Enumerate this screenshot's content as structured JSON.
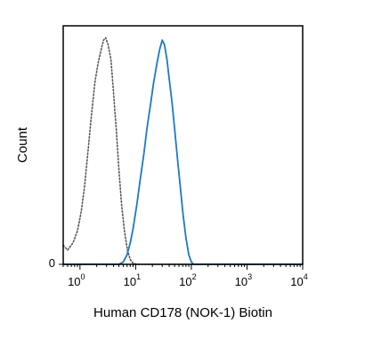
{
  "chart_data": {
    "type": "line",
    "title": "",
    "xlabel": "Human CD178 (NOK-1) Biotin",
    "ylabel": "Count",
    "x_scale": "log",
    "xlim": [
      0.5,
      10000
    ],
    "ylim": [
      0,
      100
    ],
    "x_ticks": [
      {
        "base": "10",
        "exp": "0",
        "value": 1
      },
      {
        "base": "10",
        "exp": "1",
        "value": 10
      },
      {
        "base": "10",
        "exp": "2",
        "value": 100
      },
      {
        "base": "10",
        "exp": "3",
        "value": 1000
      },
      {
        "base": "10",
        "exp": "4",
        "value": 10000
      }
    ],
    "y_ticks": [
      {
        "label": "0",
        "value": 0
      }
    ],
    "grid": false,
    "legend": "none",
    "series": [
      {
        "color": "#555555",
        "style": "dotted",
        "points": [
          [
            0.5,
            8
          ],
          [
            0.6,
            6
          ],
          [
            0.75,
            9
          ],
          [
            0.9,
            14
          ],
          [
            1.05,
            22
          ],
          [
            1.2,
            32
          ],
          [
            1.4,
            48
          ],
          [
            1.6,
            62
          ],
          [
            1.85,
            76
          ],
          [
            2.1,
            84
          ],
          [
            2.4,
            90
          ],
          [
            2.65,
            94
          ],
          [
            2.9,
            95
          ],
          [
            3.2,
            92
          ],
          [
            3.6,
            86
          ],
          [
            4.0,
            72
          ],
          [
            4.5,
            56
          ],
          [
            5.0,
            40
          ],
          [
            5.6,
            25
          ],
          [
            6.3,
            14
          ],
          [
            7.1,
            6
          ],
          [
            8.0,
            2
          ],
          [
            9.0,
            0.5
          ],
          [
            10.5,
            0
          ],
          [
            10000,
            0
          ]
        ]
      },
      {
        "color": "#1f77c8",
        "style": "solid",
        "points": [
          [
            0.5,
            0
          ],
          [
            5.0,
            0
          ],
          [
            6.0,
            1
          ],
          [
            7.0,
            4
          ],
          [
            8.0,
            9
          ],
          [
            9.0,
            15
          ],
          [
            10.5,
            25
          ],
          [
            12.0,
            35
          ],
          [
            14.0,
            46
          ],
          [
            16.0,
            57
          ],
          [
            18.5,
            67
          ],
          [
            21.0,
            76
          ],
          [
            24.0,
            84
          ],
          [
            27.0,
            90
          ],
          [
            30.0,
            94
          ],
          [
            33.0,
            92
          ],
          [
            36.5,
            86
          ],
          [
            40.0,
            78
          ],
          [
            45.0,
            68
          ],
          [
            50.0,
            57
          ],
          [
            56.0,
            45
          ],
          [
            63.0,
            33
          ],
          [
            71.0,
            21
          ],
          [
            80.0,
            11
          ],
          [
            90.0,
            4
          ],
          [
            100.0,
            1
          ],
          [
            110.0,
            0
          ],
          [
            10000,
            0
          ]
        ]
      }
    ]
  }
}
